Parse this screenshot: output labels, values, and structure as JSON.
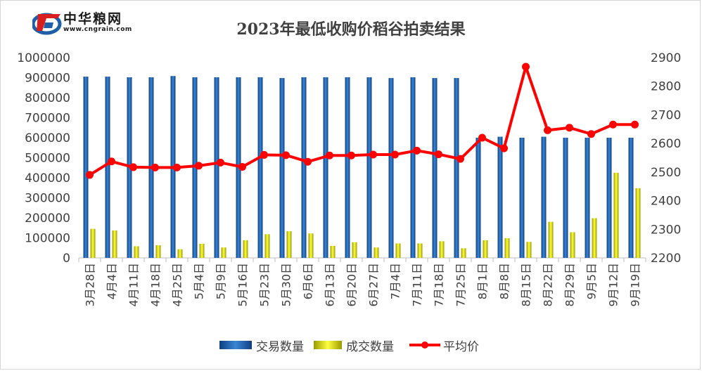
{
  "title": "2023年最低收购价稻谷拍卖结果",
  "logo": {
    "name": "中华粮网",
    "sub": "www.cngrain.com"
  },
  "colors": {
    "volume": "#1f5fa8",
    "deal": "#dede00",
    "price": "#ff0000"
  },
  "chart_data": {
    "type": "bar",
    "categories": [
      "3月28日",
      "4月4日",
      "4月11日",
      "4月18日",
      "4月25日",
      "5月4日",
      "5月9日",
      "5月16日",
      "5月23日",
      "5月30日",
      "6月6日",
      "6月13日",
      "6月20日",
      "6月27日",
      "7月4日",
      "7月11日",
      "7月18日",
      "7月25日",
      "8月1日",
      "8月8日",
      "8月15日",
      "8月22日",
      "8月29日",
      "9月5日",
      "9月12日",
      "9月19日"
    ],
    "series": [
      {
        "name": "交易数量",
        "type": "bar",
        "axis": "left",
        "values": [
          905000,
          905000,
          902000,
          902000,
          908000,
          902000,
          902000,
          902000,
          902000,
          898000,
          902000,
          902000,
          902000,
          902000,
          898000,
          902000,
          898000,
          898000,
          600000,
          605000,
          600000,
          605000,
          600000,
          600000,
          600000,
          600000
        ]
      },
      {
        "name": "成交数量",
        "type": "bar",
        "axis": "left",
        "values": [
          145000,
          137000,
          58000,
          63000,
          43000,
          70000,
          52000,
          88000,
          118000,
          133000,
          122000,
          60000,
          78000,
          52000,
          72000,
          72000,
          83000,
          48000,
          88000,
          98000,
          80000,
          180000,
          128000,
          198000,
          425000,
          348000
        ]
      },
      {
        "name": "平均价",
        "type": "line",
        "axis": "right",
        "values": [
          2490,
          2537,
          2517,
          2516,
          2516,
          2522,
          2533,
          2518,
          2560,
          2559,
          2536,
          2558,
          2558,
          2561,
          2561,
          2575,
          2562,
          2546,
          2620,
          2583,
          2868,
          2646,
          2655,
          2633,
          2666,
          2666
        ]
      }
    ],
    "ylim_left": [
      0,
      1000000
    ],
    "yticks_left": [
      "0",
      "100000",
      "200000",
      "300000",
      "400000",
      "500000",
      "600000",
      "700000",
      "800000",
      "900000",
      "1000000"
    ],
    "ylim_right": [
      2200,
      2900
    ],
    "yticks_right": [
      "2200",
      "2300",
      "2400",
      "2500",
      "2600",
      "2700",
      "2800",
      "2900"
    ],
    "grid": false,
    "legend": "bottom"
  }
}
